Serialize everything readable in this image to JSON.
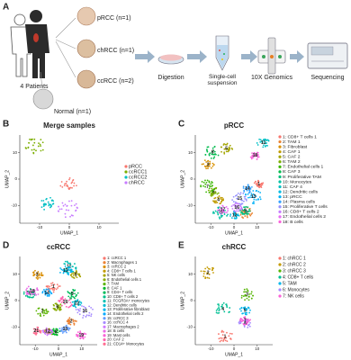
{
  "workflow": {
    "letter": "A",
    "patients_label": "4 Patients",
    "samples": [
      "pRCC (n=1)",
      "chRCC (n=1)",
      "ccRCC (n=2)",
      "Normal (n=1)"
    ],
    "steps": [
      "Digestion",
      "Single-cell suspension",
      "10X Genomics",
      "Sequencing"
    ]
  },
  "panels": [
    {
      "letter": "B",
      "title": "Merge samples",
      "x_label": "UMAP_1",
      "y_label": "UMAP_2",
      "x_ticks": [
        "-10",
        "0",
        "10"
      ],
      "y_ticks": [
        "-10",
        "0",
        "10"
      ],
      "legend": [
        {
          "label": "pRCC",
          "color": "#f8766d"
        },
        {
          "label": "ccRCC1",
          "color": "#7cae00"
        },
        {
          "label": "ccRCC2",
          "color": "#00bfc4"
        },
        {
          "label": "chRCC",
          "color": "#c77cff"
        }
      ],
      "plot_labels": []
    },
    {
      "letter": "C",
      "title": "pRCC",
      "x_label": "UMAP_1",
      "y_label": "UMAP_2",
      "x_ticks": [
        "-10",
        "0",
        "10"
      ],
      "y_ticks": [
        "-10",
        "0",
        "10"
      ],
      "legend": [
        {
          "label": "1: CD8+ T cells 1",
          "color": "#f8766d"
        },
        {
          "label": "2: TAM 1",
          "color": "#ea8331"
        },
        {
          "label": "3: Fibroblast",
          "color": "#d89000"
        },
        {
          "label": "4: CAF 1",
          "color": "#c09b00"
        },
        {
          "label": "5: CAF 2",
          "color": "#a3a500"
        },
        {
          "label": "6: TAM 2",
          "color": "#7cae00"
        },
        {
          "label": "7: Endothelial cells 1",
          "color": "#39b600"
        },
        {
          "label": "8: CAF 3",
          "color": "#00bb4e"
        },
        {
          "label": "9: Proliferative TAM",
          "color": "#00bf7d"
        },
        {
          "label": "10: Monocytes",
          "color": "#00c1a3"
        },
        {
          "label": "11: CAF 4",
          "color": "#00bfc4"
        },
        {
          "label": "12: Dendritic cells",
          "color": "#00bae0"
        },
        {
          "label": "13: pRCC",
          "color": "#00b0f6"
        },
        {
          "label": "14: Plasma cells",
          "color": "#35a2ff"
        },
        {
          "label": "15: Proliferative T cells",
          "color": "#9590ff"
        },
        {
          "label": "16: CD8+ T cells 2",
          "color": "#c77cff"
        },
        {
          "label": "17: Endothelial cells 2",
          "color": "#e76bf3"
        },
        {
          "label": "18: B cells",
          "color": "#fa62db"
        }
      ],
      "plot_labels": [
        "1",
        "2",
        "3",
        "4",
        "5",
        "6",
        "7",
        "8",
        "9",
        "10",
        "11",
        "12",
        "13",
        "14",
        "15",
        "16",
        "17",
        "18"
      ]
    },
    {
      "letter": "D",
      "title": "ccRCC",
      "x_label": "UMAP_1",
      "y_label": "UMAP_2",
      "x_ticks": [
        "-10",
        "0",
        "10"
      ],
      "y_ticks": [
        "-10",
        "0",
        "10"
      ],
      "legend": [
        {
          "label": "1: ccRCC 1",
          "color": "#f8766d"
        },
        {
          "label": "2: Macrophages 1",
          "color": "#eb8335"
        },
        {
          "label": "3: ccRCC 2",
          "color": "#da8f00"
        },
        {
          "label": "4: CD8+ T cells 1",
          "color": "#c49a00"
        },
        {
          "label": "5: NK cells",
          "color": "#a9a400"
        },
        {
          "label": "6: Endothelial cells 1",
          "color": "#88ac00"
        },
        {
          "label": "7: TAM",
          "color": "#5bb300"
        },
        {
          "label": "8: CAF 1",
          "color": "#00b92a"
        },
        {
          "label": "9: CD4+ T cells",
          "color": "#00bc5c"
        },
        {
          "label": "10: CD8+ T cells 2",
          "color": "#00c08b"
        },
        {
          "label": "11: FCGR3A+ monocytes",
          "color": "#00c0b2"
        },
        {
          "label": "12: Dendritic cells",
          "color": "#00bdd3"
        },
        {
          "label": "13: Proliferative fibroblast",
          "color": "#00b5ee"
        },
        {
          "label": "14: Endothelial cells 2",
          "color": "#00a9ff"
        },
        {
          "label": "15: ccRCC 3",
          "color": "#619cff"
        },
        {
          "label": "16: ccRCC 4",
          "color": "#a58aff"
        },
        {
          "label": "17: Macrophages 2",
          "color": "#d078ff"
        },
        {
          "label": "18: B cells",
          "color": "#ea6ae6"
        },
        {
          "label": "19: Mast cells",
          "color": "#fb61d7"
        },
        {
          "label": "20: CAF 2",
          "color": "#ff65b0"
        },
        {
          "label": "21: CD14+ Monocytes",
          "color": "#ff6c91"
        }
      ],
      "plot_labels": [
        "1",
        "2",
        "3",
        "4",
        "5",
        "6",
        "7",
        "8",
        "9",
        "10",
        "11",
        "12",
        "13",
        "14",
        "15",
        "16",
        "17",
        "18",
        "19",
        "20",
        "21"
      ]
    },
    {
      "letter": "E",
      "title": "chRCC",
      "x_label": "UMAP_1",
      "y_label": "UMAP_2",
      "x_ticks": [
        "-10",
        "0",
        "10"
      ],
      "y_ticks": [
        "-10",
        "0",
        "10"
      ],
      "legend": [
        {
          "label": "1: chRCC 1",
          "color": "#f8766d"
        },
        {
          "label": "2: chRCC 2",
          "color": "#c49a00"
        },
        {
          "label": "3: chRCC 3",
          "color": "#53b400"
        },
        {
          "label": "4: CD8+ T cells",
          "color": "#00c094"
        },
        {
          "label": "5: TAM",
          "color": "#00b6eb"
        },
        {
          "label": "6: Monocytes",
          "color": "#a58aff"
        },
        {
          "label": "7: NK cells",
          "color": "#fb61d7"
        }
      ],
      "plot_labels": [
        "1",
        "2",
        "3",
        "4",
        "5",
        "6",
        "7"
      ]
    }
  ]
}
